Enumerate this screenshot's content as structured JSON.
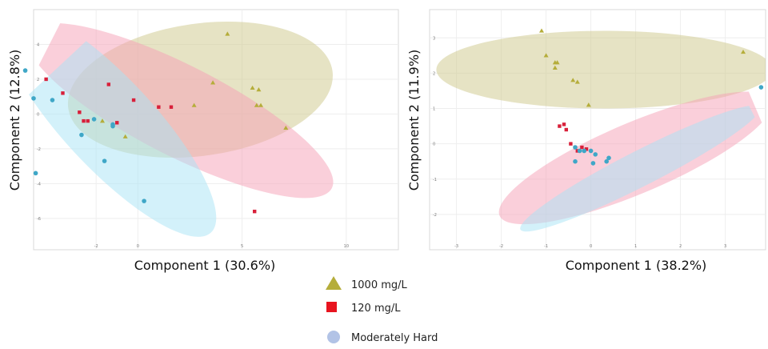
{
  "legend": [
    {
      "label": "1000 mg/L",
      "shape": "triangle",
      "color": "#b5ad3a"
    },
    {
      "label": "120 mg/L",
      "shape": "square",
      "color": "#e8141f"
    },
    {
      "label": "Moderately Hard",
      "shape": "circle",
      "color": "#b2c3e6"
    }
  ],
  "colors": {
    "ellipse_1000": "#cdc78a",
    "ellipse_120": "#f59fb6",
    "ellipse_mh": "#a8e4f5",
    "marker_1000": "#b5ad3a",
    "marker_120": "#d8203a",
    "marker_mh": "#3fa7c7"
  },
  "chart_data": [
    {
      "type": "scatter",
      "xlabel": "Component 1 (30.6%)",
      "ylabel": "Component 2 (12.8%)",
      "xlim": [
        -5.0,
        12.5
      ],
      "ylim": [
        -7.8,
        6.0
      ],
      "x_ticks": [
        {
          "value": -2,
          "label": "-2"
        },
        {
          "value": 0,
          "label": "0"
        },
        {
          "value": 5,
          "label": "5"
        },
        {
          "value": 10,
          "label": "10"
        }
      ],
      "y_ticks": [
        {
          "value": 4,
          "label": "4"
        },
        {
          "value": 2,
          "label": "2"
        },
        {
          "value": 0,
          "label": "0"
        },
        {
          "value": -2,
          "label": "-2"
        },
        {
          "value": -4,
          "label": "-4"
        },
        {
          "value": -6,
          "label": "-6"
        }
      ],
      "grid": true,
      "ellipses": [
        {
          "group": "1000 mg/L",
          "cx": 3.0,
          "cy": 1.4,
          "rx": 6.4,
          "ry": 3.8,
          "angle": -8
        },
        {
          "group": "120 mg/L",
          "cx": 2.0,
          "cy": 0.2,
          "rx": 8.2,
          "ry": 2.6,
          "angle": 27
        },
        {
          "group": "Moderately Hard",
          "cx": -1.4,
          "cy": -0.5,
          "rx": 7.2,
          "ry": 2.6,
          "angle": 47
        }
      ],
      "series": [
        {
          "name": "1000 mg/L",
          "points": [
            [
              4.3,
              4.6
            ],
            [
              3.6,
              1.8
            ],
            [
              5.5,
              1.5
            ],
            [
              5.8,
              1.4
            ],
            [
              5.9,
              0.5
            ],
            [
              5.7,
              0.5
            ],
            [
              7.1,
              -0.8
            ],
            [
              2.7,
              0.5
            ],
            [
              -1.7,
              -0.4
            ],
            [
              -0.6,
              -1.3
            ]
          ]
        },
        {
          "name": "120 mg/L",
          "points": [
            [
              -4.4,
              2.0
            ],
            [
              -3.6,
              1.2
            ],
            [
              -2.8,
              0.1
            ],
            [
              -2.6,
              -0.4
            ],
            [
              -2.4,
              -0.4
            ],
            [
              -1.4,
              1.7
            ],
            [
              -1.0,
              -0.5
            ],
            [
              -0.2,
              0.8
            ],
            [
              1.0,
              0.4
            ],
            [
              1.6,
              0.4
            ],
            [
              5.6,
              -5.6
            ]
          ]
        },
        {
          "name": "Moderately Hard",
          "points": [
            [
              -5.4,
              2.5
            ],
            [
              -5.0,
              0.9
            ],
            [
              -4.1,
              0.8
            ],
            [
              -2.7,
              -1.2
            ],
            [
              -2.1,
              -0.3
            ],
            [
              -1.6,
              -2.7
            ],
            [
              -1.2,
              -0.6
            ],
            [
              -4.9,
              -3.4
            ],
            [
              -1.2,
              -0.7
            ],
            [
              0.3,
              -5.0
            ]
          ]
        }
      ]
    },
    {
      "type": "scatter",
      "xlabel": "Component 1 (38.2%)",
      "ylabel": "Component 2 (11.9%)",
      "xlim": [
        -3.6,
        3.9
      ],
      "ylim": [
        -3.0,
        3.8
      ],
      "x_ticks": [
        {
          "value": -3,
          "label": "-3"
        },
        {
          "value": -2,
          "label": "-2"
        },
        {
          "value": -1,
          "label": "-1"
        },
        {
          "value": 0,
          "label": "0"
        },
        {
          "value": 1,
          "label": "1"
        },
        {
          "value": 2,
          "label": "2"
        },
        {
          "value": 3,
          "label": "3"
        }
      ],
      "y_ticks": [
        {
          "value": 3,
          "label": "3"
        },
        {
          "value": 2,
          "label": "2"
        },
        {
          "value": 1,
          "label": "1"
        },
        {
          "value": 0,
          "label": "0"
        },
        {
          "value": -1,
          "label": "-1"
        },
        {
          "value": -2,
          "label": "-2"
        }
      ],
      "grid": true,
      "ellipses": [
        {
          "group": "1000 mg/L",
          "cx": 0.3,
          "cy": 2.1,
          "rx": 3.75,
          "ry": 1.1,
          "angle": 0
        },
        {
          "group": "120 mg/L",
          "cx": 1.0,
          "cy": -0.4,
          "rx": 3.3,
          "ry": 1.0,
          "angle": -23
        },
        {
          "group": "Moderately Hard",
          "cx": 1.1,
          "cy": -0.7,
          "rx": 3.0,
          "ry": 0.5,
          "angle": -27
        }
      ],
      "series": [
        {
          "name": "1000 mg/L",
          "points": [
            [
              -1.1,
              3.2
            ],
            [
              -1.0,
              2.5
            ],
            [
              -0.8,
              2.3
            ],
            [
              -0.75,
              2.3
            ],
            [
              -0.8,
              2.15
            ],
            [
              -0.4,
              1.8
            ],
            [
              -0.3,
              1.75
            ],
            [
              -0.05,
              1.1
            ],
            [
              3.4,
              2.6
            ]
          ]
        },
        {
          "name": "120 mg/L",
          "points": [
            [
              -0.7,
              0.5
            ],
            [
              -0.6,
              0.55
            ],
            [
              -0.55,
              0.4
            ],
            [
              -0.45,
              0.0
            ],
            [
              -0.35,
              -0.1
            ],
            [
              -0.3,
              -0.2
            ],
            [
              -0.2,
              -0.1
            ],
            [
              -0.1,
              -0.15
            ]
          ]
        },
        {
          "name": "Moderately Hard",
          "points": [
            [
              -0.35,
              -0.1
            ],
            [
              -0.25,
              -0.2
            ],
            [
              -0.15,
              -0.2
            ],
            [
              0.0,
              -0.2
            ],
            [
              0.1,
              -0.3
            ],
            [
              -0.35,
              -0.5
            ],
            [
              0.05,
              -0.55
            ],
            [
              0.4,
              -0.4
            ],
            [
              0.35,
              -0.5
            ],
            [
              3.8,
              1.6
            ]
          ]
        }
      ]
    }
  ]
}
